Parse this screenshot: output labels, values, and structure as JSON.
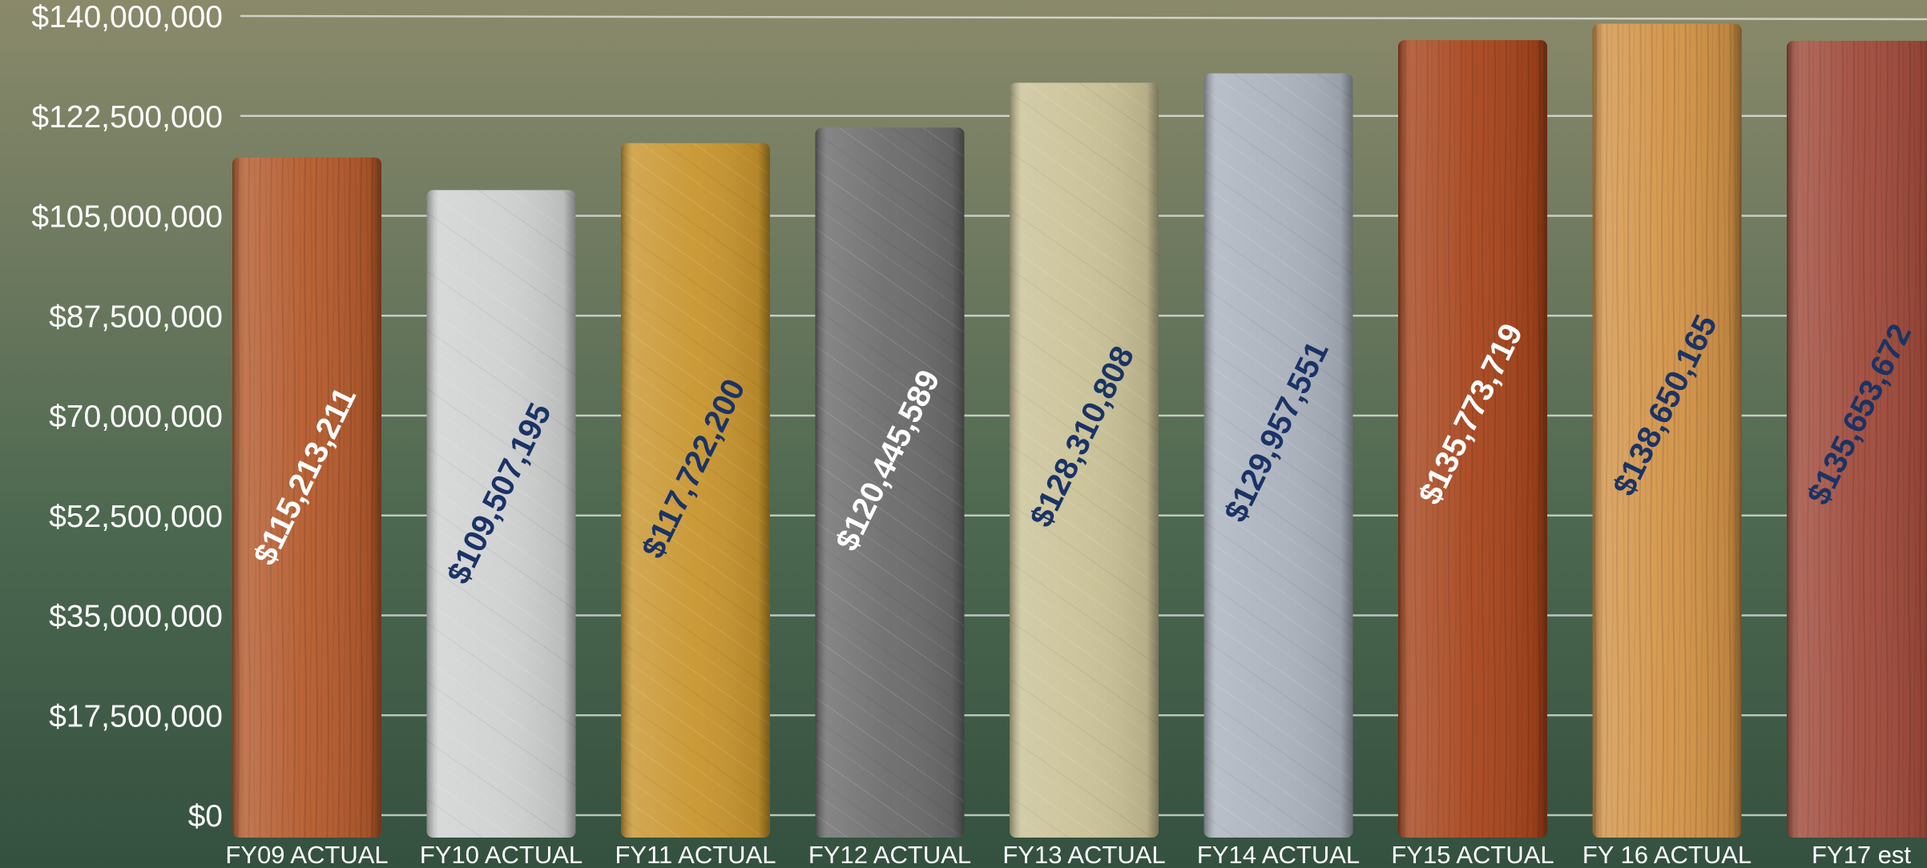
{
  "chart_data": {
    "type": "bar",
    "ylim": [
      0,
      140000000
    ],
    "y_ticks": [
      "$0",
      "$17,500,000",
      "$35,000,000",
      "$52,500,000",
      "$70,000,000",
      "$87,500,000",
      "$105,000,000",
      "$122,500,000",
      "$140,000,000"
    ],
    "y_tick_values": [
      0,
      17500000,
      35000000,
      52500000,
      70000000,
      87500000,
      105000000,
      122500000,
      140000000
    ],
    "grid": true,
    "categories": [
      "FY09 ACTUAL",
      "FY10 ACTUAL",
      "FY11 ACTUAL",
      "FY12 ACTUAL",
      "FY13 ACTUAL",
      "FY14 ACTUAL",
      "FY15 ACTUAL",
      "FY 16 ACTUAL",
      "FY17 est"
    ],
    "values": [
      115213211,
      109507195,
      117722200,
      120445589,
      128310808,
      129957551,
      135773719,
      138650165,
      135653672
    ],
    "value_labels": [
      "$115,213,211",
      "$109,507,195",
      "$117,722,200",
      "$120,445,589",
      "$128,310,808",
      "$129,957,551",
      "$135,773,719",
      "$138,650,165",
      "$135,653,672"
    ],
    "bar_materials": [
      "copper",
      "brushed-silver",
      "brushed-gold",
      "brushed-steel",
      "brushed-brass",
      "brushed-aluminum",
      "cherry-wood",
      "oak-wood",
      "mahogany-wood"
    ],
    "bar_colors": [
      "#b55a2c",
      "#cfd0d0",
      "#c8952e",
      "#6b6b6b",
      "#c9c196",
      "#aab1bc",
      "#a8451c",
      "#d39347",
      "#a04a3a"
    ],
    "label_colors": [
      "#ffffff",
      "#1a3366",
      "#1a3366",
      "#ffffff",
      "#1a3366",
      "#1a3366",
      "#ffffff",
      "#1a3366",
      "#1a3366"
    ]
  }
}
